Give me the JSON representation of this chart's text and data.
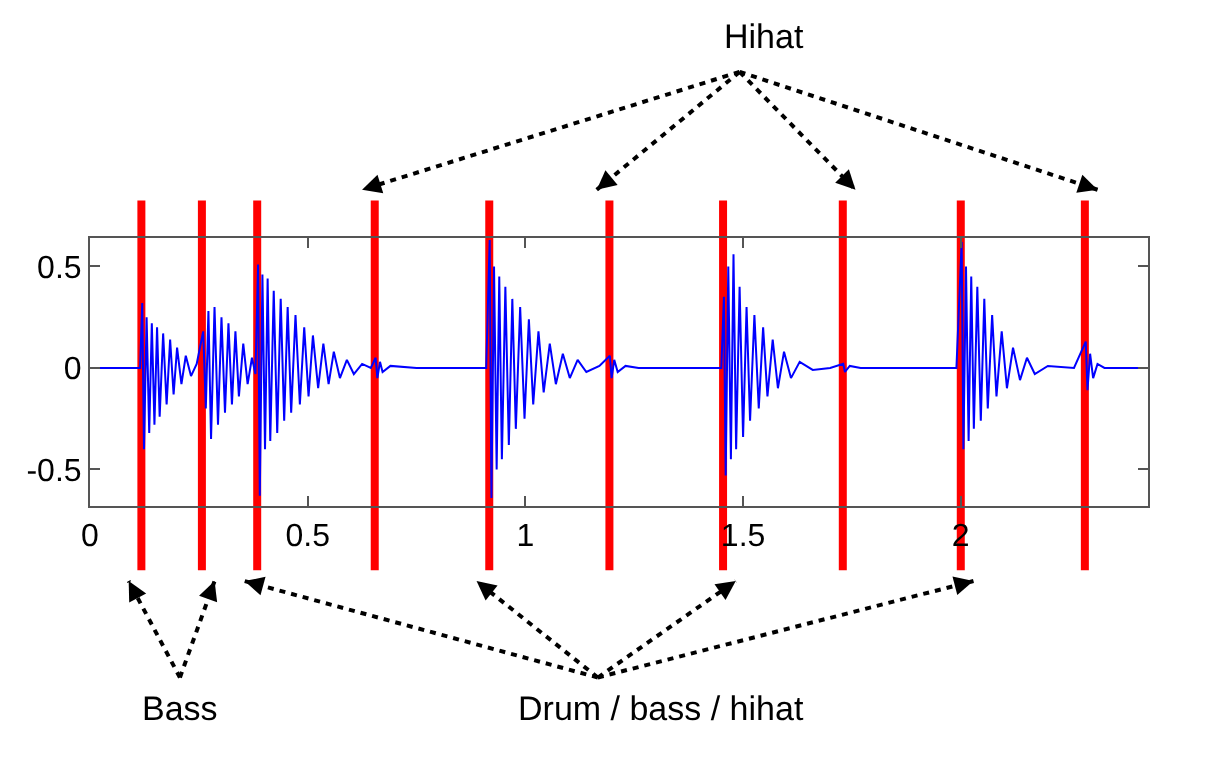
{
  "chart_data": {
    "type": "line",
    "xlim": [
      0,
      2.43
    ],
    "ylim": [
      -0.68,
      0.64
    ],
    "xticks": [
      0,
      0.5,
      1,
      1.5,
      2
    ],
    "yticks": [
      -0.5,
      0,
      0.5
    ],
    "grid": false,
    "marker": "none",
    "line_style": "solid",
    "series": [
      {
        "color": "#0000ff",
        "x": [
          0,
          0.115,
          0.12,
          0.124,
          0.13,
          0.136,
          0.142,
          0.148,
          0.154,
          0.16,
          0.168,
          0.176,
          0.184,
          0.192,
          0.2,
          0.21,
          0.22,
          0.232,
          0.245,
          0.26,
          0.266,
          0.272,
          0.278,
          0.286,
          0.294,
          0.302,
          0.31,
          0.318,
          0.326,
          0.334,
          0.342,
          0.352,
          0.362,
          0.372,
          0.38,
          0.386,
          0.39,
          0.396,
          0.402,
          0.408,
          0.414,
          0.422,
          0.43,
          0.438,
          0.446,
          0.454,
          0.462,
          0.472,
          0.482,
          0.492,
          0.502,
          0.512,
          0.524,
          0.536,
          0.548,
          0.56,
          0.574,
          0.59,
          0.606,
          0.625,
          0.645,
          0.656,
          0.66,
          0.666,
          0.672,
          0.69,
          0.75,
          0.91,
          0.918,
          0.922,
          0.928,
          0.934,
          0.94,
          0.946,
          0.954,
          0.962,
          0.97,
          0.978,
          0.988,
          0.998,
          1.008,
          1.018,
          1.03,
          1.042,
          1.056,
          1.07,
          1.086,
          1.102,
          1.12,
          1.14,
          1.17,
          1.194,
          1.198,
          1.204,
          1.212,
          1.23,
          1.26,
          1.45,
          1.456,
          1.46,
          1.466,
          1.472,
          1.478,
          1.484,
          1.492,
          1.5,
          1.508,
          1.516,
          1.526,
          1.536,
          1.546,
          1.556,
          1.568,
          1.58,
          1.594,
          1.61,
          1.63,
          1.66,
          1.7,
          1.73,
          1.734,
          1.745,
          1.77,
          1.99,
          2.002,
          2.006,
          2.012,
          2.018,
          2.024,
          2.03,
          2.038,
          2.046,
          2.054,
          2.062,
          2.072,
          2.082,
          2.094,
          2.106,
          2.12,
          2.136,
          2.152,
          2.17,
          2.2,
          2.26,
          2.287,
          2.291,
          2.297,
          2.304,
          2.314,
          2.33,
          2.43
        ],
        "values": [
          0,
          0,
          0.32,
          -0.4,
          0.25,
          -0.32,
          0.22,
          -0.28,
          0.2,
          -0.24,
          0.17,
          -0.18,
          0.14,
          -0.13,
          0.1,
          -0.08,
          0.06,
          -0.04,
          0.02,
          0.18,
          -0.2,
          0.28,
          -0.35,
          0.3,
          -0.28,
          0.25,
          -0.22,
          0.22,
          -0.18,
          0.18,
          -0.14,
          0.12,
          -0.08,
          0.05,
          -0.03,
          0.51,
          -0.63,
          0.46,
          -0.4,
          0.44,
          -0.36,
          0.38,
          -0.32,
          0.34,
          -0.26,
          0.3,
          -0.22,
          0.26,
          -0.18,
          0.2,
          -0.14,
          0.16,
          -0.1,
          0.12,
          -0.08,
          0.08,
          -0.05,
          0.04,
          -0.03,
          0.02,
          0,
          0.05,
          -0.05,
          0.03,
          -0.02,
          0.01,
          0,
          0,
          0.63,
          -0.64,
          0.5,
          -0.5,
          0.45,
          -0.45,
          0.4,
          -0.38,
          0.34,
          -0.3,
          0.3,
          -0.25,
          0.24,
          -0.18,
          0.18,
          -0.12,
          0.12,
          -0.08,
          0.07,
          -0.05,
          0.04,
          -0.02,
          0.01,
          0.06,
          -0.05,
          0.04,
          -0.02,
          0.01,
          0,
          0,
          0.35,
          -0.53,
          0.5,
          -0.45,
          0.56,
          -0.4,
          0.4,
          -0.34,
          0.3,
          -0.26,
          0.26,
          -0.2,
          0.2,
          -0.14,
          0.14,
          -0.1,
          0.08,
          -0.05,
          0.03,
          -0.01,
          0,
          0.02,
          -0.02,
          0.01,
          0,
          0,
          0.62,
          -0.4,
          0.5,
          -0.36,
          0.45,
          -0.3,
          0.4,
          -0.26,
          0.34,
          -0.2,
          0.26,
          -0.14,
          0.18,
          -0.1,
          0.1,
          -0.06,
          0.05,
          -0.03,
          0.01,
          0,
          0.13,
          -0.11,
          0.07,
          -0.05,
          0.02,
          0,
          0
        ]
      }
    ],
    "ref_lines": [
      {
        "axis": "x",
        "value": 0.118,
        "color": "#ff0000"
      },
      {
        "axis": "x",
        "value": 0.257,
        "color": "#ff0000"
      },
      {
        "axis": "x",
        "value": 0.384,
        "color": "#ff0000"
      },
      {
        "axis": "x",
        "value": 0.654,
        "color": "#ff0000"
      },
      {
        "axis": "x",
        "value": 0.917,
        "color": "#ff0000"
      },
      {
        "axis": "x",
        "value": 1.193,
        "color": "#ff0000"
      },
      {
        "axis": "x",
        "value": 1.454,
        "color": "#ff0000"
      },
      {
        "axis": "x",
        "value": 1.729,
        "color": "#ff0000"
      },
      {
        "axis": "x",
        "value": 2.0,
        "color": "#ff0000"
      },
      {
        "axis": "x",
        "value": 2.285,
        "color": "#ff0000"
      }
    ],
    "annotations": [
      "Hihat",
      "Bass",
      "Drum / bass / hihat"
    ]
  }
}
